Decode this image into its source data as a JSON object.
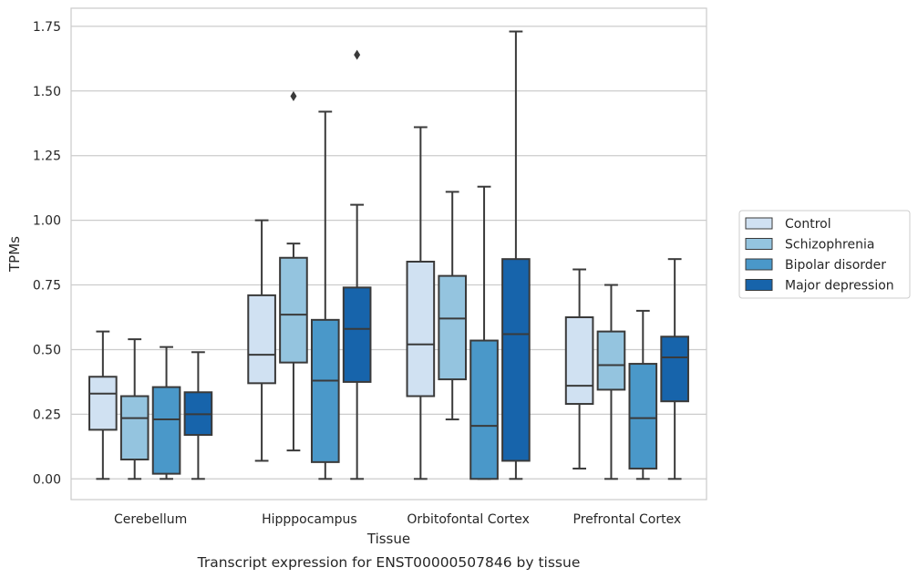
{
  "caption": "Transcript expression for ENST00000507846 by tissue",
  "chart_data": {
    "type": "box",
    "xlabel": "Tissue",
    "ylabel": "TPMs",
    "ylim": [
      -0.08,
      1.82
    ],
    "yticks": [
      0.0,
      0.25,
      0.5,
      0.75,
      1.0,
      1.25,
      1.5,
      1.75
    ],
    "ytick_labels": [
      "0.00",
      "0.25",
      "0.50",
      "0.75",
      "1.00",
      "1.25",
      "1.50",
      "1.75"
    ],
    "grid": "horizontal",
    "legend_position": "right",
    "categories": [
      "Cerebellum",
      "Hipppocampus",
      "Orbitofontal Cortex",
      "Prefrontal Cortex"
    ],
    "series": [
      {
        "name": "Control",
        "color": "#d0e1f2",
        "boxes": [
          {
            "whislo": 0.0,
            "q1": 0.19,
            "med": 0.33,
            "q3": 0.395,
            "whishi": 0.57,
            "fliers": []
          },
          {
            "whislo": 0.07,
            "q1": 0.37,
            "med": 0.48,
            "q3": 0.71,
            "whishi": 1.0,
            "fliers": []
          },
          {
            "whislo": 0.0,
            "q1": 0.32,
            "med": 0.52,
            "q3": 0.84,
            "whishi": 1.36,
            "fliers": []
          },
          {
            "whislo": 0.04,
            "q1": 0.29,
            "med": 0.36,
            "q3": 0.625,
            "whishi": 0.81,
            "fliers": []
          }
        ]
      },
      {
        "name": "Schizophrenia",
        "color": "#94c4df",
        "boxes": [
          {
            "whislo": 0.0,
            "q1": 0.075,
            "med": 0.235,
            "q3": 0.32,
            "whishi": 0.54,
            "fliers": []
          },
          {
            "whislo": 0.11,
            "q1": 0.45,
            "med": 0.635,
            "q3": 0.855,
            "whishi": 0.91,
            "fliers": [
              1.48
            ]
          },
          {
            "whislo": 0.23,
            "q1": 0.385,
            "med": 0.62,
            "q3": 0.785,
            "whishi": 1.11,
            "fliers": []
          },
          {
            "whislo": 0.0,
            "q1": 0.345,
            "med": 0.44,
            "q3": 0.57,
            "whishi": 0.75,
            "fliers": []
          }
        ]
      },
      {
        "name": "Bipolar disorder",
        "color": "#4a98c9",
        "boxes": [
          {
            "whislo": 0.0,
            "q1": 0.02,
            "med": 0.23,
            "q3": 0.355,
            "whishi": 0.51,
            "fliers": []
          },
          {
            "whislo": 0.0,
            "q1": 0.065,
            "med": 0.38,
            "q3": 0.615,
            "whishi": 1.42,
            "fliers": []
          },
          {
            "whislo": 0.0,
            "q1": 0.0,
            "med": 0.205,
            "q3": 0.535,
            "whishi": 1.13,
            "fliers": []
          },
          {
            "whislo": 0.0,
            "q1": 0.04,
            "med": 0.235,
            "q3": 0.445,
            "whishi": 0.65,
            "fliers": []
          }
        ]
      },
      {
        "name": "Major depression",
        "color": "#1764ab",
        "boxes": [
          {
            "whislo": 0.0,
            "q1": 0.17,
            "med": 0.25,
            "q3": 0.335,
            "whishi": 0.49,
            "fliers": []
          },
          {
            "whislo": 0.0,
            "q1": 0.375,
            "med": 0.58,
            "q3": 0.74,
            "whishi": 1.06,
            "fliers": [
              1.64
            ]
          },
          {
            "whislo": 0.0,
            "q1": 0.07,
            "med": 0.56,
            "q3": 0.85,
            "whishi": 1.73,
            "fliers": []
          },
          {
            "whislo": 0.0,
            "q1": 0.3,
            "med": 0.47,
            "q3": 0.55,
            "whishi": 0.85,
            "fliers": []
          }
        ]
      }
    ]
  }
}
